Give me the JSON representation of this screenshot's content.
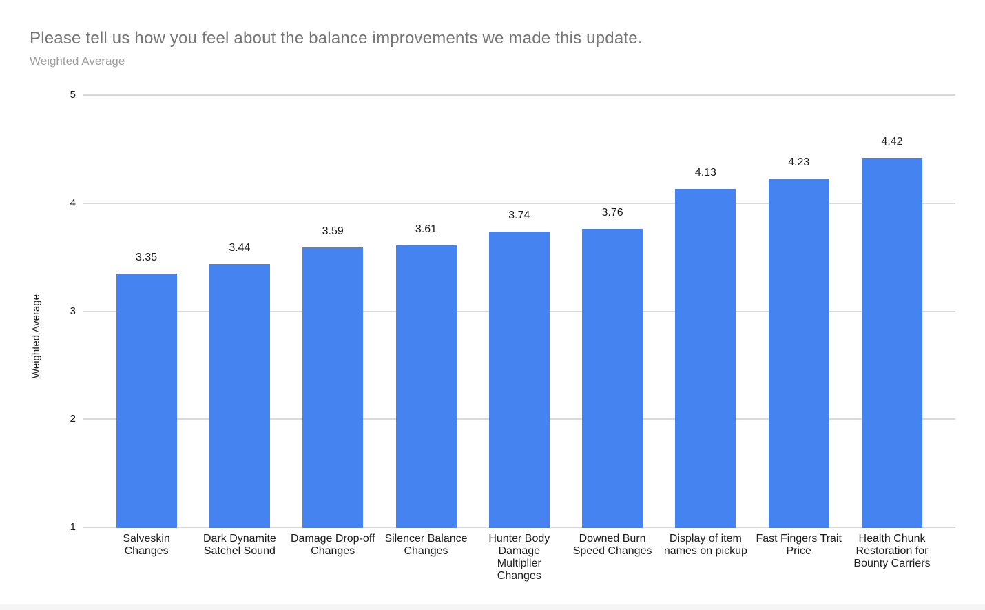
{
  "header": {
    "title": "Please tell us how you feel about the balance improvements we made this update.",
    "subtitle": "Weighted Average"
  },
  "colors": {
    "bar": "#4584f0",
    "gridline": "#d9d9d9",
    "title_text": "#757575",
    "subtitle_text": "#9e9e9e",
    "label_text": "#1c1c1c",
    "footer_strip": "#f5f5f6",
    "background": "#ffffff"
  },
  "chart_data": {
    "type": "bar",
    "title": "Please tell us how you feel about the balance improvements we made this update.",
    "subtitle": "Weighted Average",
    "xlabel": "",
    "ylabel": "Weighted Average",
    "ylim": [
      1,
      5
    ],
    "yticks": [
      1,
      2,
      3,
      4,
      5
    ],
    "grid": true,
    "legend": "none",
    "categories": [
      "Salveskin Changes",
      "Dark Dynamite Satchel Sound",
      "Damage Drop-off Changes",
      "Silencer Balance Changes",
      "Hunter Body Damage Multiplier Changes",
      "Downed Burn Speed Changes",
      "Display of item names on pickup",
      "Fast Fingers Trait Price",
      "Health Chunk Restoration for Bounty Carriers"
    ],
    "category_lines": [
      [
        "Salveskin",
        "Changes"
      ],
      [
        "Dark Dynamite",
        "Satchel Sound"
      ],
      [
        "Damage Drop-off",
        "Changes"
      ],
      [
        "Silencer Balance",
        "Changes"
      ],
      [
        "Hunter Body",
        "Damage",
        "Multiplier",
        "Changes"
      ],
      [
        "Downed Burn",
        "Speed Changes"
      ],
      [
        "Display of item",
        "names on pickup"
      ],
      [
        "Fast Fingers Trait",
        "Price"
      ],
      [
        "Health Chunk",
        "Restoration for",
        "Bounty Carriers"
      ]
    ],
    "values": [
      3.35,
      3.44,
      3.59,
      3.61,
      3.74,
      3.76,
      4.13,
      4.23,
      4.42
    ]
  }
}
